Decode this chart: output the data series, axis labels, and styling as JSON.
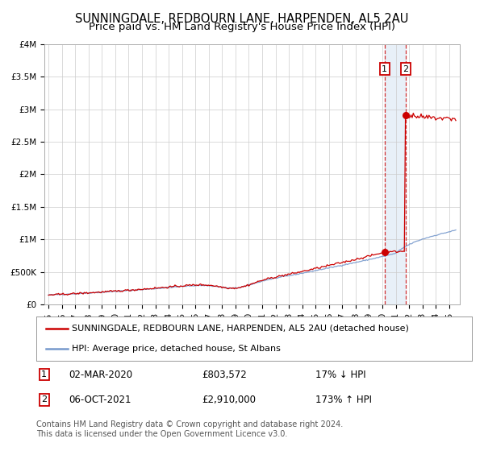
{
  "title": "SUNNINGDALE, REDBOURN LANE, HARPENDEN, AL5 2AU",
  "subtitle": "Price paid vs. HM Land Registry's House Price Index (HPI)",
  "ylim": [
    0,
    4000000
  ],
  "yticks": [
    0,
    500000,
    1000000,
    1500000,
    2000000,
    2500000,
    3000000,
    3500000,
    4000000
  ],
  "ytick_labels": [
    "£0",
    "£500K",
    "£1M",
    "£1.5M",
    "£2M",
    "£2.5M",
    "£3M",
    "£3.5M",
    "£4M"
  ],
  "year_start": 1995,
  "year_end": 2025,
  "sale1_price": 803572,
  "sale1_year": 2020.17,
  "sale2_price": 2910000,
  "sale2_year": 2021.76,
  "red_line_color": "#cc0000",
  "blue_line_color": "#7799cc",
  "highlight_color": "#e8f0f8",
  "vline_color": "#cc0000",
  "grid_color": "#cccccc",
  "background_color": "#ffffff",
  "legend1_label": "SUNNINGDALE, REDBOURN LANE, HARPENDEN, AL5 2AU (detached house)",
  "legend2_label": "HPI: Average price, detached house, St Albans",
  "note1_label": "1",
  "note1_date": "02-MAR-2020",
  "note1_price": "£803,572",
  "note1_hpi": "17% ↓ HPI",
  "note2_label": "2",
  "note2_date": "06-OCT-2021",
  "note2_price": "£2,910,000",
  "note2_hpi": "173% ↑ HPI",
  "footer": "Contains HM Land Registry data © Crown copyright and database right 2024.\nThis data is licensed under the Open Government Licence v3.0.",
  "title_fontsize": 10.5,
  "subtitle_fontsize": 9.5,
  "tick_fontsize": 7.5,
  "legend_fontsize": 8,
  "note_fontsize": 8.5,
  "footer_fontsize": 7
}
